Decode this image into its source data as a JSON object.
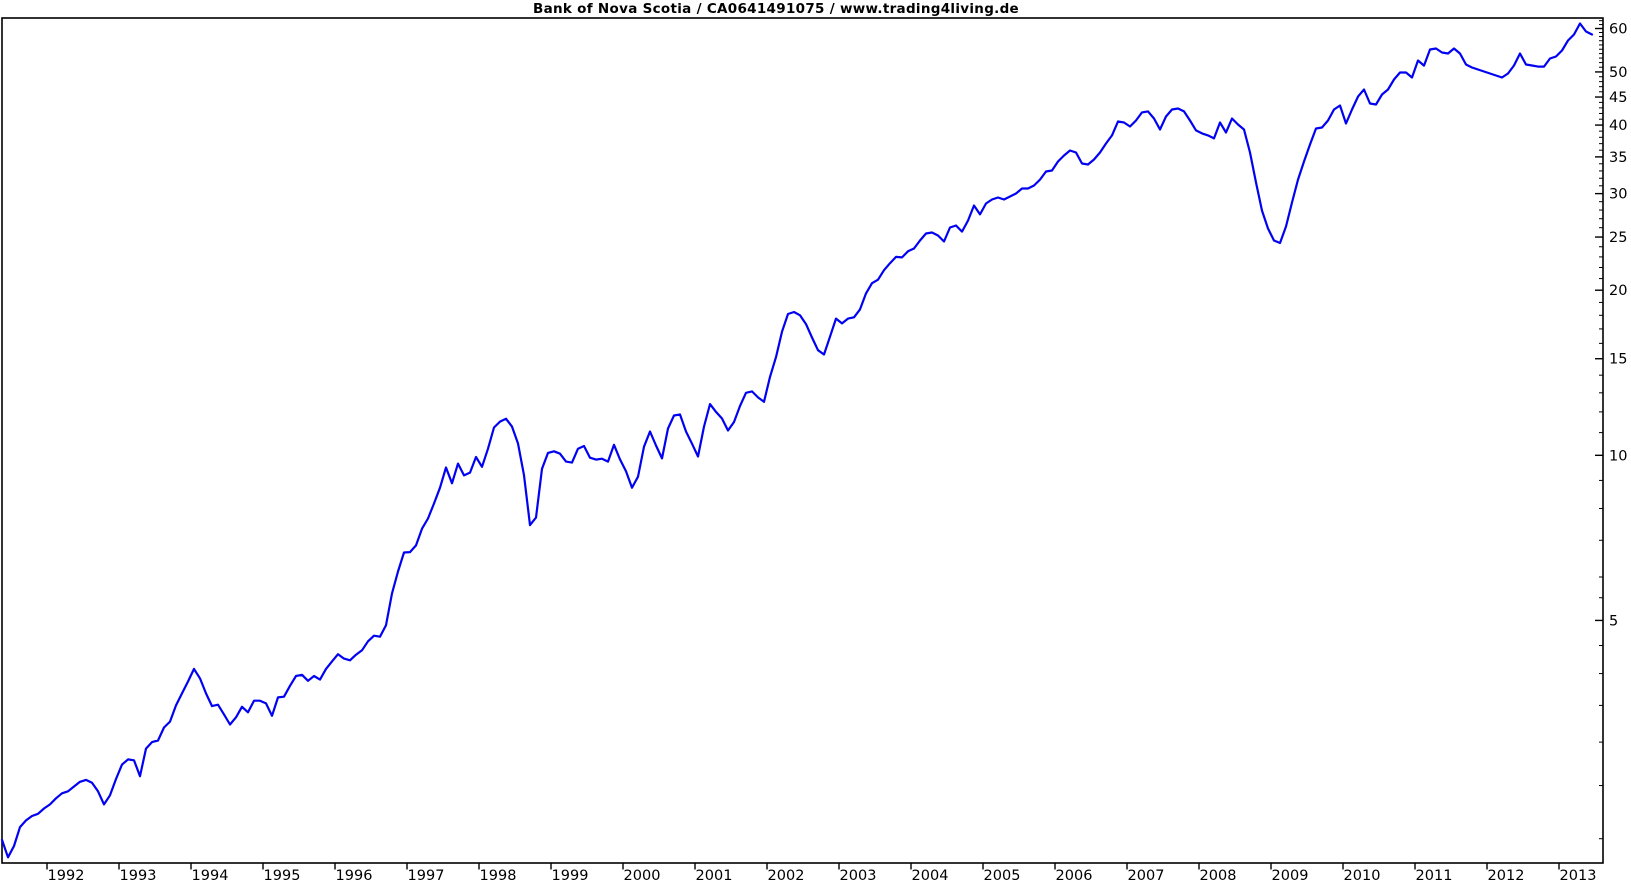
{
  "title": "Bank of Nova Scotia / CA0641491075 / www.trading4living.de",
  "chart_data": {
    "type": "line",
    "title": "Bank of Nova Scotia / CA0641491075 / www.trading4living.de",
    "instrument": "Bank of Nova Scotia",
    "isin": "CA0641491075",
    "source_label": "www.trading4living.de",
    "line_color": "#0202f2",
    "grid": "off",
    "x_axis": {
      "tick_labels": [
        "1992",
        "1993",
        "1994",
        "1995",
        "1996",
        "1997",
        "1998",
        "1999",
        "2000",
        "2001",
        "2002",
        "2003",
        "2004",
        "2005",
        "2006",
        "2007",
        "2008",
        "2009",
        "2010",
        "2011",
        "2012",
        "2013"
      ]
    },
    "y_axis": {
      "scale": "log",
      "tick_labels": [
        "60",
        "50",
        "45",
        "40",
        "35",
        "30",
        "25",
        "20",
        "15",
        "10",
        "5"
      ],
      "top_value": 63.0,
      "bottom_value": 1.8
    },
    "series": [
      {
        "name": "Bank of Nova Scotia monthly price",
        "start": "1991-05",
        "frequency": "monthly",
        "values": [
          1.99,
          1.85,
          1.94,
          2.1,
          2.16,
          2.2,
          2.22,
          2.27,
          2.31,
          2.37,
          2.42,
          2.44,
          2.49,
          2.54,
          2.56,
          2.53,
          2.44,
          2.31,
          2.4,
          2.57,
          2.73,
          2.79,
          2.78,
          2.6,
          2.92,
          3.0,
          3.02,
          3.19,
          3.27,
          3.5,
          3.68,
          3.87,
          4.08,
          3.92,
          3.68,
          3.49,
          3.51,
          3.37,
          3.23,
          3.33,
          3.48,
          3.4,
          3.57,
          3.57,
          3.53,
          3.35,
          3.62,
          3.63,
          3.8,
          3.96,
          3.98,
          3.88,
          3.96,
          3.9,
          4.08,
          4.21,
          4.34,
          4.26,
          4.23,
          4.33,
          4.41,
          4.58,
          4.69,
          4.67,
          4.9,
          5.6,
          6.14,
          6.65,
          6.66,
          6.85,
          7.35,
          7.67,
          8.17,
          8.73,
          9.5,
          8.89,
          9.66,
          9.19,
          9.3,
          9.93,
          9.53,
          10.28,
          11.24,
          11.52,
          11.66,
          11.28,
          10.51,
          9.2,
          7.46,
          7.7,
          9.45,
          10.1,
          10.17,
          10.07,
          9.74,
          9.7,
          10.28,
          10.4,
          9.9,
          9.82,
          9.86,
          9.74,
          10.45,
          9.83,
          9.35,
          8.73,
          9.14,
          10.37,
          11.05,
          10.42,
          9.87,
          11.19,
          11.82,
          11.87,
          11.05,
          10.5,
          9.95,
          11.28,
          12.4,
          12.0,
          11.67,
          11.1,
          11.5,
          12.3,
          13.0,
          13.08,
          12.75,
          12.52,
          13.9,
          15.1,
          16.8,
          18.1,
          18.25,
          18.0,
          17.35,
          16.4,
          15.55,
          15.27,
          16.45,
          17.75,
          17.4,
          17.75,
          17.85,
          18.45,
          19.73,
          20.6,
          20.9,
          21.75,
          22.4,
          23.0,
          22.95,
          23.55,
          23.83,
          24.64,
          25.37,
          25.48,
          25.16,
          24.54,
          26.02,
          26.24,
          25.58,
          26.79,
          28.54,
          27.49,
          28.78,
          29.27,
          29.51,
          29.27,
          29.64,
          30.02,
          30.65,
          30.65,
          31.04,
          31.82,
          32.92,
          33.06,
          34.33,
          35.2,
          35.95,
          35.65,
          34.04,
          33.9,
          34.62,
          35.65,
          37.02,
          38.3,
          40.61,
          40.43,
          39.76,
          40.78,
          42.18,
          42.36,
          41.12,
          39.27,
          41.47,
          42.71,
          42.89,
          42.36,
          40.78,
          39.11,
          38.62,
          38.3,
          37.82,
          40.43,
          38.78,
          41.12,
          40.1,
          39.27,
          35.65,
          31.43,
          27.94,
          25.91,
          24.64,
          24.38,
          26.13,
          28.9,
          31.82,
          34.33,
          36.87,
          39.43,
          39.6,
          40.78,
          42.71,
          43.43,
          40.27,
          42.71,
          45.09,
          46.45,
          43.79,
          43.61,
          45.48,
          46.45,
          48.43,
          49.88,
          49.88,
          48.85,
          52.45,
          51.34,
          54.94,
          55.17,
          54.25,
          54.02,
          55.17,
          54.02,
          51.58,
          50.93,
          50.51,
          50.09,
          49.67,
          49.26,
          48.85,
          49.67,
          51.36,
          54.02,
          51.58,
          51.36,
          51.14,
          51.14,
          52.89,
          53.34,
          54.71,
          57.05,
          58.51,
          61.27,
          59.25,
          58.51
        ]
      }
    ]
  }
}
